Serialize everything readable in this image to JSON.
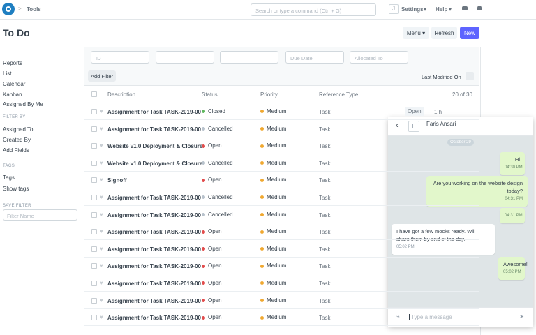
{
  "navbar": {
    "breadcrumb": "Tools",
    "search_placeholder": "Search or type a command (Ctrl + G)",
    "avatar": "J",
    "settings": "Settings",
    "help": "Help"
  },
  "header": {
    "title": "To Do",
    "menu": "Menu",
    "refresh": "Refresh",
    "new": "New"
  },
  "sidebar": {
    "views": [
      "Reports",
      "List",
      "Calendar",
      "Kanban",
      "Assigned By Me"
    ],
    "filter_by_title": "FILTER BY",
    "filter_by": [
      "Assigned To",
      "Created By",
      "Add Fields"
    ],
    "tags_title": "TAGS",
    "tags": [
      "Tags",
      "Show tags"
    ],
    "save_filter_title": "SAVE FILTER",
    "filter_name_placeholder": "Filter Name"
  },
  "filters": {
    "placeholders": [
      "ID",
      "",
      "",
      "Due Date",
      "Allocated To"
    ],
    "add_filter": "Add Filter",
    "sort": "Last Modified On"
  },
  "table": {
    "columns": [
      "Description",
      "Status",
      "Priority",
      "Reference Type"
    ],
    "count": "20 of 30",
    "status_colors": {
      "Closed": "#5fb85f",
      "Cancelled": "#b8c2cc",
      "Open": "#e24c4c"
    },
    "priority_color": "#f0a830",
    "rows": [
      [
        "Assignment for Task TASK-2019-00",
        "Closed",
        "Medium",
        "Task"
      ],
      [
        "Assignment for Task TASK-2019-00",
        "Cancelled",
        "Medium",
        "Task"
      ],
      [
        "Website v1.0 Deployment & Closure",
        "Open",
        "Medium",
        "Task"
      ],
      [
        "Website v1.0 Deployment & Closure",
        "Cancelled",
        "Medium",
        "Task"
      ],
      [
        "Signoff",
        "Open",
        "Medium",
        "Task"
      ],
      [
        "Assignment for Task TASK-2019-00",
        "Cancelled",
        "Medium",
        "Task"
      ],
      [
        "Assignment for Task TASK-2019-00",
        "Cancelled",
        "Medium",
        "Task"
      ],
      [
        "Assignment for Task TASK-2019-00",
        "Open",
        "Medium",
        "Task"
      ],
      [
        "Assignment for Task TASK-2019-00",
        "Open",
        "Medium",
        "Task"
      ],
      [
        "Assignment for Task TASK-2019-00",
        "Open",
        "Medium",
        "Task"
      ],
      [
        "Assignment for Task TASK-2019-00",
        "Open",
        "Medium",
        "Task"
      ],
      [
        "Assignment for Task TASK-2019-00",
        "Open",
        "Medium",
        "Task"
      ],
      [
        "Assignment for Task TASK-2019-00",
        "Open",
        "Medium",
        "Task"
      ]
    ],
    "row0_extra": [
      "Open",
      "1 h"
    ]
  },
  "chat": {
    "name": "Faris Ansari",
    "avatar": "F",
    "date": "October 29",
    "input_placeholder": "Type a message",
    "messages": [
      {
        "text": "Hi",
        "time": "04:30 PM",
        "side": "right"
      },
      {
        "text": "Are you working on the website design today?",
        "time": "04:31 PM",
        "side": "right"
      },
      {
        "text": "",
        "time": "04:31 PM",
        "side": "right"
      },
      {
        "text": "I have got a few mocks ready. Will share them by end of the day.",
        "time": "05:02 PM",
        "side": "left"
      },
      {
        "text": "Awesome!",
        "time": "05:02 PM",
        "side": "right"
      }
    ]
  }
}
